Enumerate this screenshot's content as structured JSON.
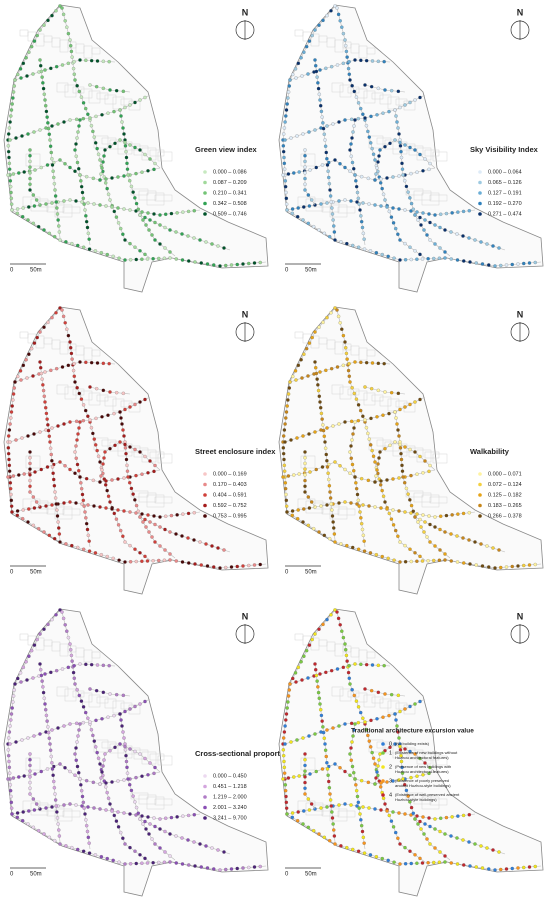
{
  "panels": [
    {
      "title": "Green view index",
      "north": "N",
      "scale_start": "0",
      "scale_end": "50m",
      "legend": [
        {
          "label": "0.000 – 0.086",
          "color": "#c7e9c0"
        },
        {
          "label": "0.087 – 0.209",
          "color": "#a1d99b"
        },
        {
          "label": "0.210 – 0.341",
          "color": "#74c476"
        },
        {
          "label": "0.342 – 0.508",
          "color": "#31a354"
        },
        {
          "label": "0.509 – 0.746",
          "color": "#00532a"
        }
      ]
    },
    {
      "title": "Sky Visibility Index",
      "north": "N",
      "scale_start": "0",
      "scale_end": "50m",
      "legend": [
        {
          "label": "0.000 – 0.064",
          "color": "#deebf7"
        },
        {
          "label": "0.065 – 0.126",
          "color": "#9ecae1"
        },
        {
          "label": "0.127 – 0.191",
          "color": "#6baed6"
        },
        {
          "label": "0.192 – 0.270",
          "color": "#3182bd"
        },
        {
          "label": "0.271 – 0.474",
          "color": "#08306b"
        }
      ]
    },
    {
      "title": "Street enclosure index",
      "north": "N",
      "scale_start": "0",
      "scale_end": "50m",
      "legend": [
        {
          "label": "0.000 – 0.169",
          "color": "#f7c6c6"
        },
        {
          "label": "0.170 – 0.403",
          "color": "#e88a8a"
        },
        {
          "label": "0.404 – 0.591",
          "color": "#d0403a"
        },
        {
          "label": "0.592 – 0.752",
          "color": "#a51c1c"
        },
        {
          "label": "0.753 – 0.995",
          "color": "#4a0808"
        }
      ]
    },
    {
      "title": "Walkability",
      "north": "N",
      "scale_start": "0",
      "scale_end": "50m",
      "legend": [
        {
          "label": "0.000 – 0.071",
          "color": "#fff3a0"
        },
        {
          "label": "0.072 – 0.124",
          "color": "#f4d03f"
        },
        {
          "label": "0.125 – 0.182",
          "color": "#e6a317"
        },
        {
          "label": "0.183 – 0.265",
          "color": "#c7861a"
        },
        {
          "label": "0.266 – 0.378",
          "color": "#6e4a10"
        }
      ]
    },
    {
      "title": "Cross-sectional proportion",
      "north": "N",
      "scale_start": "0",
      "scale_end": "50m",
      "legend": [
        {
          "label": "0.000 – 0.450",
          "color": "#ecd9f0"
        },
        {
          "label": "0.451 – 1.218",
          "color": "#d4a6de"
        },
        {
          "label": "1.219 – 2.000",
          "color": "#b07cc6"
        },
        {
          "label": "2.001 – 3.240",
          "color": "#8a4fb5"
        },
        {
          "label": "3.241 – 9.700",
          "color": "#4b2278"
        }
      ]
    },
    {
      "title": "Traditional architecture excursion value",
      "north": "N",
      "scale_start": "0",
      "scale_end": "50m",
      "legend": [
        {
          "label": "0",
          "desc": [
            "(No building exists)"
          ],
          "color": "#2f7ed8"
        },
        {
          "label": "1",
          "desc": [
            "(Existence of new buildings without",
            "Huzhou architectural features)"
          ],
          "color": "#7ac943"
        },
        {
          "label": "2",
          "desc": [
            "(Presence of new buildings with",
            "Huzhou architectural features)"
          ],
          "color": "#f2e51d"
        },
        {
          "label": "3",
          "desc": [
            "(Existence of poorly preserved",
            "ancient Huzhou-style buildings)"
          ],
          "color": "#f7941d"
        },
        {
          "label": "4",
          "desc": [
            "(Existence of well-preserved ancient",
            "Huzhou-style buildings)"
          ],
          "color": "#c1272d"
        }
      ]
    }
  ]
}
